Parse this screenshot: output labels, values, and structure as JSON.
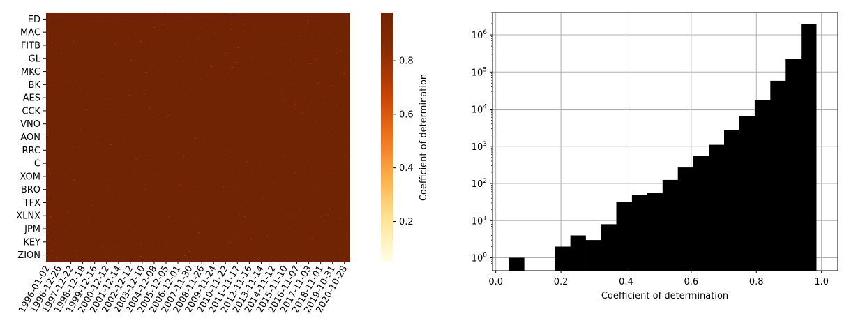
{
  "chart_data": [
    {
      "type": "heatmap",
      "y_tick_labels": [
        "ED",
        "MAC",
        "FITB",
        "GL",
        "MKC",
        "BK",
        "AES",
        "CCK",
        "VNO",
        "AON",
        "RRC",
        "C",
        "XOM",
        "BRO",
        "TFX",
        "XLNX",
        "JPM",
        "KEY",
        "ZION"
      ],
      "x_tick_labels": [
        "1996-01-02",
        "1996-12-26",
        "1997-12-22",
        "1998-12-18",
        "1999-12-16",
        "2000-12-12",
        "2001-12-14",
        "2002-12-12",
        "2003-12-10",
        "2004-12-08",
        "2005-12-05",
        "2006-12-01",
        "2007-11-30",
        "2008-11-26",
        "2009-11-24",
        "2010-11-22",
        "2011-11-17",
        "2012-11-16",
        "2013-11-14",
        "2014-11-12",
        "2015-11-10",
        "2016-11-07",
        "2017-11-03",
        "2018-11-01",
        "2019-10-31",
        "2020-10-28"
      ],
      "colorbar": {
        "label": "Coefficient of determination",
        "ticks": [
          0.2,
          0.4,
          0.6,
          0.8
        ],
        "range": [
          0.05,
          0.98
        ],
        "colormap": "YlOrBr",
        "colors": [
          "#fffee6",
          "#fee597",
          "#fdb04a",
          "#f0741c",
          "#c74303",
          "#8c2d04",
          "#702403"
        ]
      },
      "dominant_value": 0.98,
      "dominant_color": "#702403"
    },
    {
      "type": "bar",
      "subtype": "histogram",
      "xlabel": "Coefficient of determination",
      "ylabel": "",
      "xlim": [
        -0.01,
        1.05
      ],
      "ylim": [
        0.45,
        4000000
      ],
      "y_scale": "log",
      "grid": true,
      "bar_color": "#000000",
      "x_ticks": [
        0.0,
        0.2,
        0.4,
        0.6,
        0.8,
        1.0
      ],
      "x_tick_labels": [
        "0.0",
        "0.2",
        "0.4",
        "0.6",
        "0.8",
        "1.0"
      ],
      "y_ticks": [
        1,
        10,
        100,
        1000,
        10000,
        100000,
        1000000
      ],
      "y_tick_base": "10",
      "y_tick_exponents": [
        "0",
        "1",
        "2",
        "3",
        "4",
        "5",
        "6"
      ],
      "bins": [
        {
          "x0": 0.04,
          "x1": 0.087,
          "count": 1
        },
        {
          "x0": 0.087,
          "x1": 0.134,
          "count": 0
        },
        {
          "x0": 0.134,
          "x1": 0.182,
          "count": 0
        },
        {
          "x0": 0.182,
          "x1": 0.229,
          "count": 2
        },
        {
          "x0": 0.229,
          "x1": 0.276,
          "count": 4
        },
        {
          "x0": 0.276,
          "x1": 0.323,
          "count": 3
        },
        {
          "x0": 0.323,
          "x1": 0.37,
          "count": 8
        },
        {
          "x0": 0.37,
          "x1": 0.418,
          "count": 32
        },
        {
          "x0": 0.418,
          "x1": 0.465,
          "count": 50
        },
        {
          "x0": 0.465,
          "x1": 0.512,
          "count": 55
        },
        {
          "x0": 0.512,
          "x1": 0.559,
          "count": 125
        },
        {
          "x0": 0.559,
          "x1": 0.606,
          "count": 270
        },
        {
          "x0": 0.606,
          "x1": 0.654,
          "count": 540
        },
        {
          "x0": 0.654,
          "x1": 0.701,
          "count": 1100
        },
        {
          "x0": 0.701,
          "x1": 0.748,
          "count": 2700
        },
        {
          "x0": 0.748,
          "x1": 0.795,
          "count": 6400
        },
        {
          "x0": 0.795,
          "x1": 0.843,
          "count": 18000
        },
        {
          "x0": 0.843,
          "x1": 0.89,
          "count": 58000
        },
        {
          "x0": 0.89,
          "x1": 0.937,
          "count": 230000
        },
        {
          "x0": 0.937,
          "x1": 0.984,
          "count": 2000000
        }
      ]
    }
  ]
}
